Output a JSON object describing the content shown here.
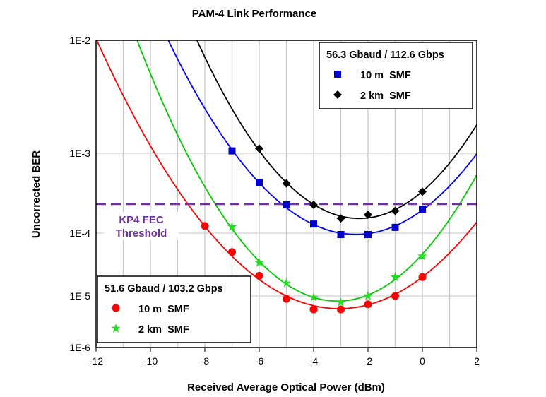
{
  "chart_data": {
    "type": "line",
    "title": "PAM-4 Link Performance",
    "xlabel": "Received Average Optical Power (dBm)",
    "ylabel": "Uncorrected BER",
    "xlim": [
      -12,
      2
    ],
    "ylim": [
      1e-06,
      0.01
    ],
    "yscale": "log (Q-scale)",
    "grid": true,
    "x_ticks": [
      -12,
      -10,
      -8,
      -6,
      -4,
      -2,
      0,
      2
    ],
    "x_tick_labels": [
      "-12",
      "-10",
      "-8",
      "-6",
      "-4",
      "-2",
      "0",
      "2"
    ],
    "y_ticks": [
      0.01,
      0.001,
      0.0001,
      1e-05,
      1e-06
    ],
    "y_tick_labels": [
      "1E-2",
      "1E-3",
      "1E-4",
      "1E-5",
      "1E-6"
    ],
    "threshold": {
      "label_line1": "KP4 FEC",
      "label_line2": "Threshold",
      "value": 0.00023,
      "color": "#7030A0"
    },
    "legend_groups": [
      {
        "title": "56.3 Gbaud / 112.6 Gbps",
        "placement": "top-right",
        "series": [
          0,
          1
        ]
      },
      {
        "title": "51.6 Gbaud / 103.2 Gbps",
        "placement": "bottom-left",
        "series": [
          2,
          3
        ]
      }
    ],
    "series": [
      {
        "name": "10 m  SMF",
        "group": "56.3 Gbaud",
        "color": "#0000FF",
        "marker_color": "#0000CC",
        "marker": "square",
        "x": [
          -7,
          -6,
          -5,
          -4,
          -3,
          -2,
          -1,
          0
        ],
        "y": [
          0.00105,
          0.00043,
          0.000226,
          0.00013,
          9.5e-05,
          9.5e-05,
          0.000118,
          0.0002
        ],
        "fit_anchors": [
          [
            -9.35,
            0.01
          ],
          [
            2,
            0.001
          ]
        ]
      },
      {
        "name": "2 km  SMF",
        "group": "56.3 Gbaud",
        "color": "#000000",
        "marker_color": "#000000",
        "marker": "diamond",
        "x": [
          -6,
          -5,
          -4,
          -3,
          -2,
          -1,
          0
        ],
        "y": [
          0.0011,
          0.00042,
          0.000226,
          0.000153,
          0.00017,
          0.00019,
          0.00033
        ],
        "fit_anchors": [
          [
            -8.3,
            0.01
          ],
          [
            2,
            0.0018
          ]
        ]
      },
      {
        "name": "10 m  SMF",
        "group": "51.6 Gbaud",
        "color": "#FF0000",
        "marker_color": "#FF0000",
        "marker": "circle",
        "x": [
          -8,
          -7,
          -6,
          -5,
          -4,
          -3,
          -2,
          -1,
          0
        ],
        "y": [
          0.000123,
          5e-05,
          2.1e-05,
          8.8e-06,
          5.5e-06,
          5.5e-06,
          6.9e-06,
          1e-05,
          2e-05
        ],
        "fit_anchors": [
          [
            -12,
            0.01
          ],
          [
            2,
            0.000145
          ]
        ]
      },
      {
        "name": "2 km  SMF",
        "group": "51.6 Gbaud",
        "color": "#00CC00",
        "marker_color": "#22DD22",
        "marker": "star",
        "x": [
          -7,
          -6,
          -5,
          -4,
          -3,
          -2,
          -1,
          0
        ],
        "y": [
          0.00012,
          3.4e-05,
          1.6e-05,
          9.4e-06,
          7.5e-06,
          1e-05,
          2e-05,
          4.3e-05
        ],
        "fit_anchors": [
          [
            -10.5,
            0.01
          ],
          [
            2,
            0.00055
          ]
        ]
      }
    ]
  }
}
